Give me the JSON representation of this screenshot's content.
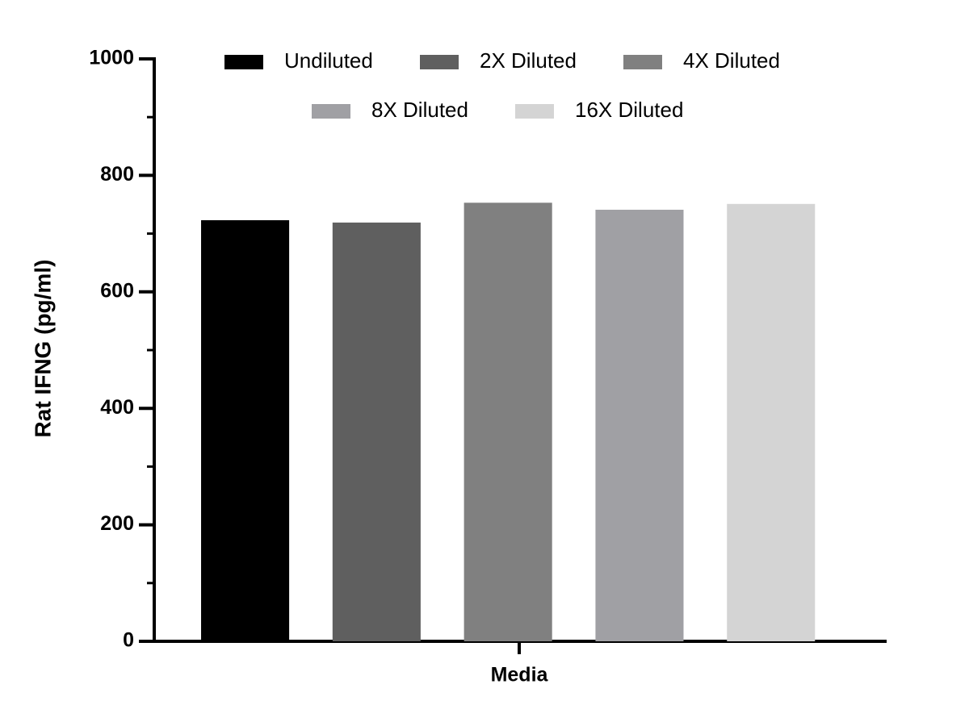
{
  "chart_data": {
    "type": "bar",
    "y_label": "Rat IFNG (pg/ml)",
    "categories": [
      "Media"
    ],
    "series": [
      {
        "name": "Undiluted",
        "color": "#000000",
        "values": [
          723
        ]
      },
      {
        "name": "2X Diluted",
        "color": "#5f5f5f",
        "values": [
          719
        ]
      },
      {
        "name": "4X Diluted",
        "color": "#808080",
        "values": [
          753
        ]
      },
      {
        "name": "8X Diluted",
        "color": "#a0a0a4",
        "values": [
          741
        ]
      },
      {
        "name": "16X Diluted",
        "color": "#d4d4d4",
        "values": [
          751
        ]
      }
    ],
    "ylim": [
      0,
      1000
    ],
    "yticks": [
      0,
      200,
      400,
      600,
      800,
      1000
    ],
    "minor_yticks": [
      100,
      300,
      500,
      700,
      900
    ]
  }
}
